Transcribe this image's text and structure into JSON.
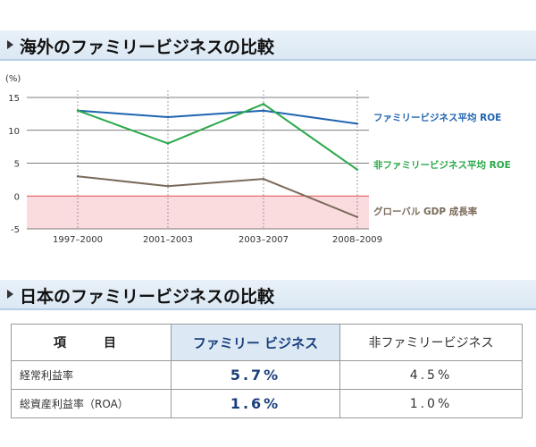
{
  "section1": {
    "title": "海外のファミリービジネスの比較"
  },
  "section2": {
    "title": "日本のファミリービジネスの比較"
  },
  "chart_data": {
    "type": "line",
    "ylabel": "(%)",
    "categories": [
      "1997–2000",
      "2001–2003",
      "2003–2007",
      "2008–2009"
    ],
    "yticks": [
      15,
      10,
      5,
      0,
      -5
    ],
    "ylim": [
      -5,
      15
    ],
    "grid": true,
    "legend": "right, end-of-line labels",
    "negative_region_color": "#fadcdf",
    "zero_line_color": "#e05050",
    "series": [
      {
        "name": "ファミリービジネス平均 ROE",
        "values": [
          13,
          12,
          13,
          11
        ],
        "color": "#1e64b0"
      },
      {
        "name": "非ファミリービジネス平均 ROE",
        "values": [
          13,
          8,
          14,
          4
        ],
        "color": "#2aa84a"
      },
      {
        "name": "グローバル GDP 成長率",
        "values": [
          3,
          1.5,
          2.6,
          -3.2
        ],
        "color": "#7a6a5a"
      }
    ]
  },
  "table": {
    "headers": {
      "item": "項　目",
      "family": "ファミリー ビジネス",
      "non_family": "非ファミリービジネス"
    },
    "rows": [
      {
        "label": "経常利益率",
        "family": "5.7%",
        "non_family": "4.5%"
      },
      {
        "label": "総資産利益率（ROA）",
        "family": "1.6%",
        "non_family": "1.0%"
      }
    ]
  }
}
